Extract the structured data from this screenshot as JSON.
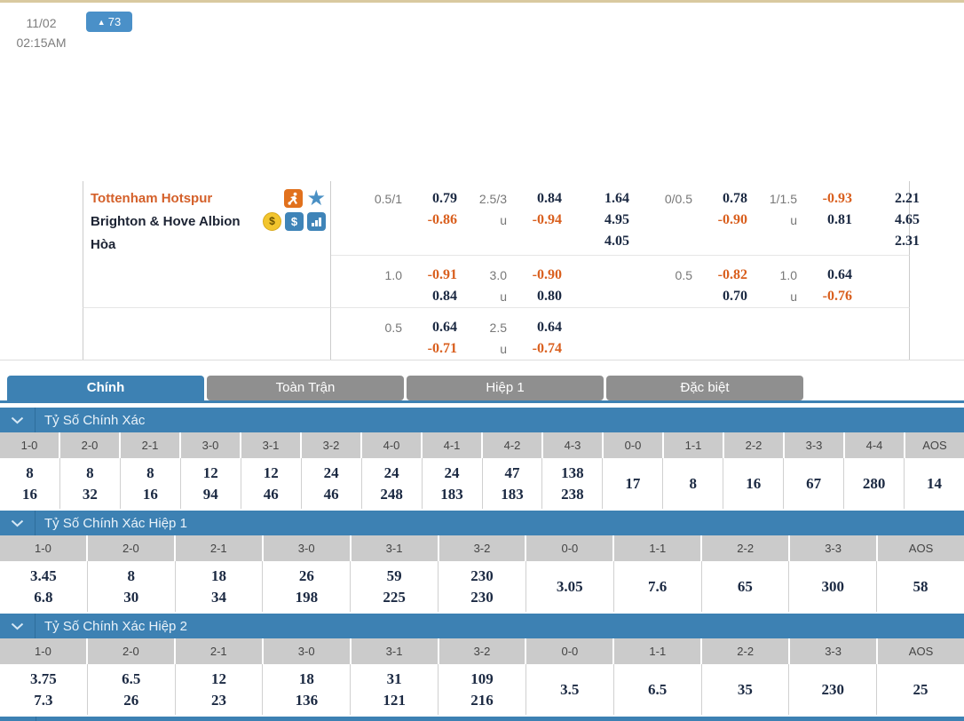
{
  "match": {
    "date": "11/02",
    "time": "02:15AM",
    "home_team": "Tottenham Hotspur",
    "away_team": "Brighton & Hove Albion",
    "draw_label": "Hòa",
    "badge": {
      "arrow": "▲",
      "count": "73"
    },
    "icons": {
      "star": "★",
      "coin": "$",
      "dollar": "$"
    }
  },
  "odds": {
    "rows": [
      {
        "g1": {
          "hdp_line": "0.5/1",
          "hdp_top": "0.79",
          "hdp_bot": "-0.86",
          "ou_line": "2.5/3",
          "ou_u": "u",
          "ou_top": "0.84",
          "ou_bot": "-0.94",
          "x12": [
            "1.64",
            "4.95",
            "4.05"
          ]
        },
        "g2": {
          "hdp_line": "0/0.5",
          "hdp_top": "0.78",
          "hdp_bot": "-0.90",
          "ou_line": "1/1.5",
          "ou_u": "u",
          "ou_top": "-0.93",
          "ou_bot": "0.81",
          "x12": [
            "2.21",
            "4.65",
            "2.31"
          ]
        }
      },
      {
        "g1": {
          "hdp_line": "1.0",
          "hdp_top": "-0.91",
          "hdp_bot": "0.84",
          "ou_line": "3.0",
          "ou_u": "u",
          "ou_top": "-0.90",
          "ou_bot": "0.80"
        },
        "g2": {
          "hdp_line": "0.5",
          "hdp_top": "-0.82",
          "hdp_bot": "0.70",
          "ou_line": "1.0",
          "ou_u": "u",
          "ou_top": "0.64",
          "ou_bot": "-0.76"
        }
      },
      {
        "g1": {
          "hdp_line": "0.5",
          "hdp_top": "0.64",
          "hdp_bot": "-0.71",
          "ou_line": "2.5",
          "ou_u": "u",
          "ou_top": "0.64",
          "ou_bot": "-0.74"
        }
      }
    ]
  },
  "tabs": [
    {
      "label": "Chính",
      "active": true
    },
    {
      "label": "Toàn Trận",
      "active": false
    },
    {
      "label": "Hiệp 1",
      "active": false
    },
    {
      "label": "Đặc biệt",
      "active": false
    }
  ],
  "sections": [
    {
      "title": "Tỷ Số Chính Xác",
      "columns": [
        {
          "score": "1-0",
          "values": [
            "8",
            "16"
          ]
        },
        {
          "score": "2-0",
          "values": [
            "8",
            "32"
          ]
        },
        {
          "score": "2-1",
          "values": [
            "8",
            "16"
          ]
        },
        {
          "score": "3-0",
          "values": [
            "12",
            "94"
          ]
        },
        {
          "score": "3-1",
          "values": [
            "12",
            "46"
          ]
        },
        {
          "score": "3-2",
          "values": [
            "24",
            "46"
          ]
        },
        {
          "score": "4-0",
          "values": [
            "24",
            "248"
          ]
        },
        {
          "score": "4-1",
          "values": [
            "24",
            "183"
          ]
        },
        {
          "score": "4-2",
          "values": [
            "47",
            "183"
          ]
        },
        {
          "score": "4-3",
          "values": [
            "138",
            "238"
          ]
        },
        {
          "score": "0-0",
          "values": [
            "17"
          ]
        },
        {
          "score": "1-1",
          "values": [
            "8"
          ]
        },
        {
          "score": "2-2",
          "values": [
            "16"
          ]
        },
        {
          "score": "3-3",
          "values": [
            "67"
          ]
        },
        {
          "score": "4-4",
          "values": [
            "280"
          ]
        },
        {
          "score": "AOS",
          "values": [
            "14"
          ]
        }
      ]
    },
    {
      "title": "Tỷ Số Chính Xác Hiệp 1",
      "columns": [
        {
          "score": "1-0",
          "values": [
            "3.45",
            "6.8"
          ]
        },
        {
          "score": "2-0",
          "values": [
            "8",
            "30"
          ]
        },
        {
          "score": "2-1",
          "values": [
            "18",
            "34"
          ]
        },
        {
          "score": "3-0",
          "values": [
            "26",
            "198"
          ]
        },
        {
          "score": "3-1",
          "values": [
            "59",
            "225"
          ]
        },
        {
          "score": "3-2",
          "values": [
            "230",
            "230"
          ]
        },
        {
          "score": "0-0",
          "values": [
            "3.05"
          ]
        },
        {
          "score": "1-1",
          "values": [
            "7.6"
          ]
        },
        {
          "score": "2-2",
          "values": [
            "65"
          ]
        },
        {
          "score": "3-3",
          "values": [
            "300"
          ]
        },
        {
          "score": "AOS",
          "values": [
            "58"
          ]
        }
      ]
    },
    {
      "title": "Tỷ Số Chính Xác Hiệp 2",
      "columns": [
        {
          "score": "1-0",
          "values": [
            "3.75",
            "7.3"
          ]
        },
        {
          "score": "2-0",
          "values": [
            "6.5",
            "26"
          ]
        },
        {
          "score": "2-1",
          "values": [
            "12",
            "23"
          ]
        },
        {
          "score": "3-0",
          "values": [
            "18",
            "136"
          ]
        },
        {
          "score": "3-1",
          "values": [
            "31",
            "121"
          ]
        },
        {
          "score": "3-2",
          "values": [
            "109",
            "216"
          ]
        },
        {
          "score": "0-0",
          "values": [
            "3.5"
          ]
        },
        {
          "score": "1-1",
          "values": [
            "6.5"
          ]
        },
        {
          "score": "2-2",
          "values": [
            "35"
          ]
        },
        {
          "score": "3-3",
          "values": [
            "230"
          ]
        },
        {
          "score": "AOS",
          "values": [
            "25"
          ]
        }
      ]
    }
  ],
  "colors": {
    "band_blue": "#3d81b3",
    "tab_gray": "#8f8f8f",
    "neg_orange": "#d95f1e",
    "home_orange": "#d4602a",
    "num_dark": "#1b2942",
    "header_gray": "#cbcbcb",
    "tan": "#d9c9a0",
    "badge_blue": "#4a90c8"
  }
}
